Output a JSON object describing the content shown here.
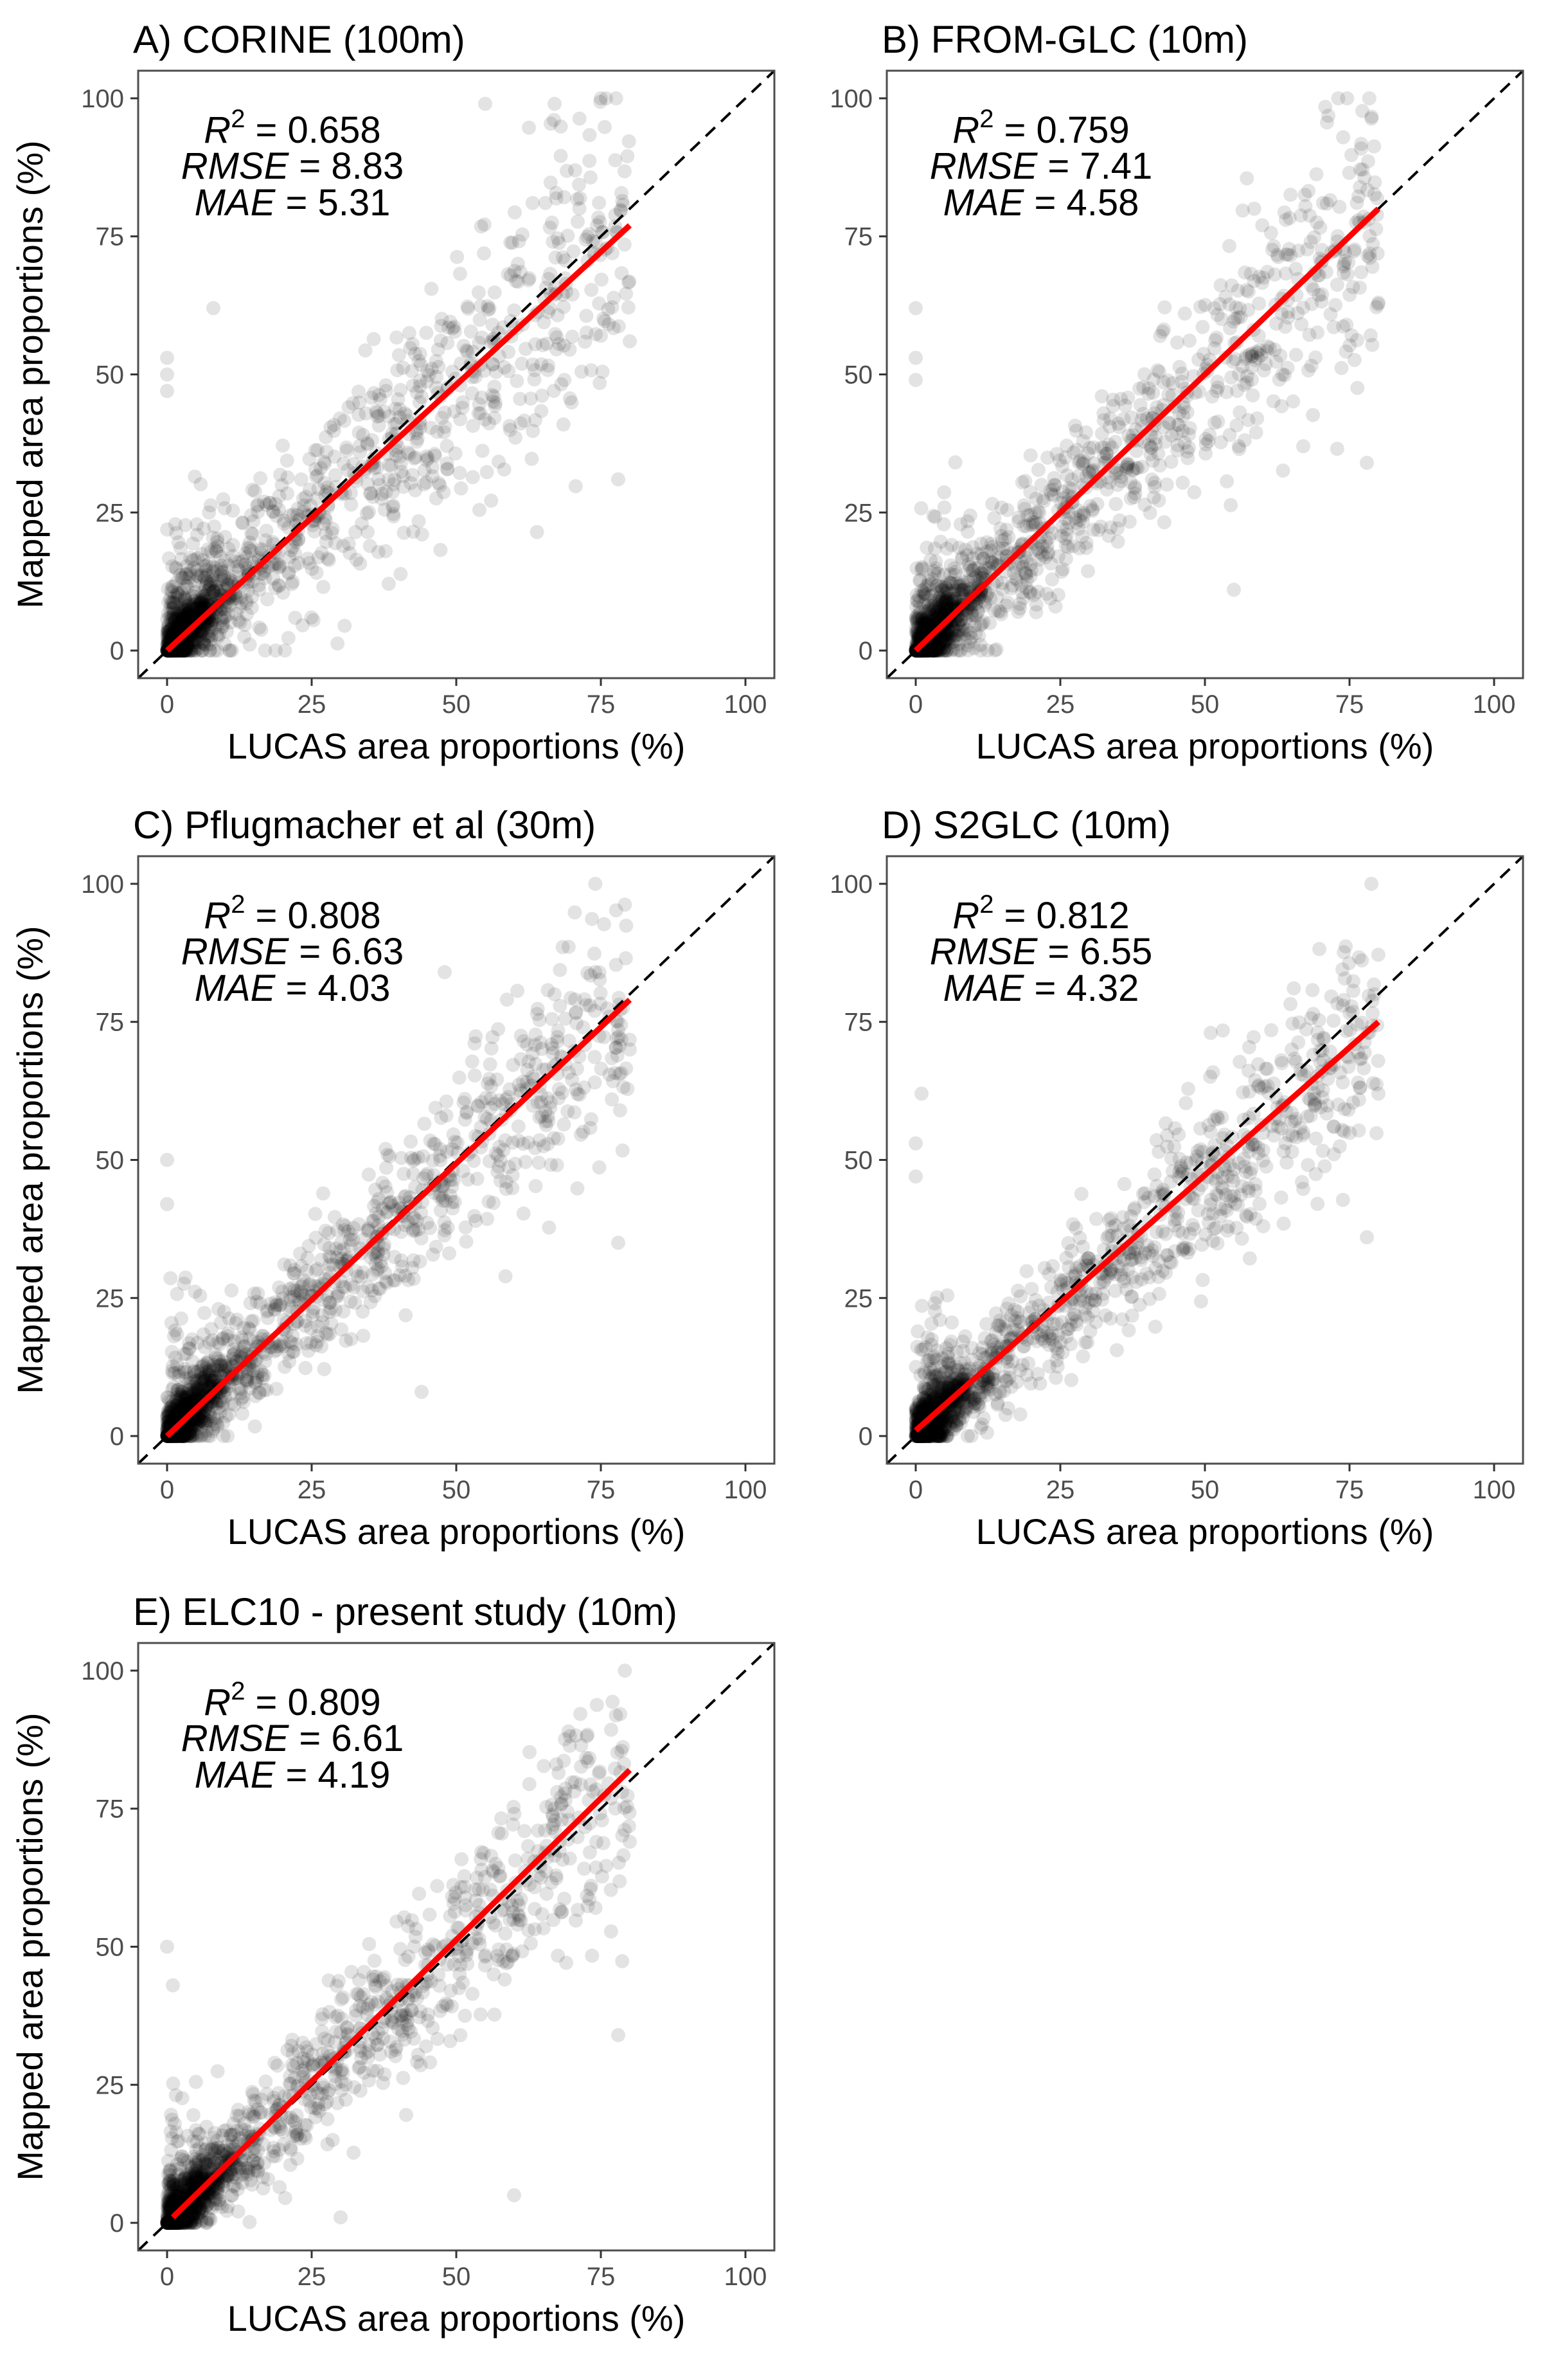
{
  "figure": {
    "x_axis_title": "LUCAS area proportions (%)",
    "y_axis_title": "Mapped area proportions (%)",
    "colors": {
      "points": "#000000",
      "fit_line": "#ff0000",
      "identity_line": "#000000",
      "frame": "#4d4d4d"
    }
  },
  "chart_data": [
    {
      "id": "A",
      "type": "scatter",
      "title": "A) CORINE (100m)",
      "xlabel": "LUCAS area proportions (%)",
      "ylabel": "Mapped area proportions (%)",
      "xlim": [
        -5,
        105
      ],
      "ylim": [
        -5,
        105
      ],
      "x_ticks": [
        0,
        25,
        50,
        75,
        100
      ],
      "y_ticks": [
        0,
        25,
        50,
        75,
        100
      ],
      "stats": {
        "r2_label": "R",
        "r2": "0.658",
        "rmse_label": "RMSE",
        "rmse": "8.83",
        "mae_label": "MAE",
        "mae": "5.31"
      },
      "fit_line": {
        "x": [
          0,
          80
        ],
        "y": [
          0,
          77
        ]
      },
      "identity_line": true,
      "point_cloud": {
        "slope": 0.96,
        "spread": 9.0,
        "n_main": 900,
        "n_low": 650,
        "seed": 11
      },
      "notable_points": [
        [
          8,
          62
        ],
        [
          0,
          53
        ],
        [
          0,
          50
        ],
        [
          0,
          47
        ],
        [
          55,
          99
        ],
        [
          67,
          99
        ],
        [
          78,
          31
        ],
        [
          80,
          56
        ],
        [
          75,
          57
        ]
      ]
    },
    {
      "id": "B",
      "type": "scatter",
      "title": "B) FROM-GLC (10m)",
      "xlabel": "LUCAS area proportions (%)",
      "ylabel": "Mapped area proportions (%)",
      "xlim": [
        -5,
        105
      ],
      "ylim": [
        -5,
        105
      ],
      "x_ticks": [
        0,
        25,
        50,
        75,
        100
      ],
      "y_ticks": [
        0,
        25,
        50,
        75,
        100
      ],
      "stats": {
        "r2_label": "R",
        "r2": "0.759",
        "rmse_label": "RMSE",
        "rmse": "7.41",
        "mae_label": "MAE",
        "mae": "4.58"
      },
      "fit_line": {
        "x": [
          0,
          80
        ],
        "y": [
          0,
          80
        ]
      },
      "identity_line": true,
      "point_cloud": {
        "slope": 1.0,
        "spread": 7.5,
        "n_main": 900,
        "n_low": 650,
        "seed": 22
      },
      "notable_points": [
        [
          0,
          62
        ],
        [
          0,
          53
        ],
        [
          0,
          49
        ],
        [
          64,
          78
        ],
        [
          78,
          34
        ],
        [
          80,
          63
        ],
        [
          55,
          11
        ],
        [
          67,
          37
        ]
      ]
    },
    {
      "id": "C",
      "type": "scatter",
      "title": "C) Pflugmacher et al (30m)",
      "xlabel": "LUCAS area proportions (%)",
      "ylabel": "Mapped area proportions (%)",
      "xlim": [
        -5,
        105
      ],
      "ylim": [
        -5,
        105
      ],
      "x_ticks": [
        0,
        25,
        50,
        75,
        100
      ],
      "y_ticks": [
        0,
        25,
        50,
        75,
        100
      ],
      "stats": {
        "r2_label": "R",
        "r2": "0.808",
        "rmse_label": "RMSE",
        "rmse": "6.63",
        "mae_label": "MAE",
        "mae": "4.03"
      },
      "fit_line": {
        "x": [
          0,
          80
        ],
        "y": [
          0,
          79
        ]
      },
      "identity_line": true,
      "point_cloud": {
        "slope": 0.99,
        "spread": 6.5,
        "n_main": 900,
        "n_low": 650,
        "seed": 33
      },
      "notable_points": [
        [
          0,
          50
        ],
        [
          0,
          42
        ],
        [
          48,
          84
        ],
        [
          67,
          80
        ],
        [
          78,
          35
        ],
        [
          80,
          70
        ],
        [
          44,
          8
        ]
      ]
    },
    {
      "id": "D",
      "type": "scatter",
      "title": "D) S2GLC (10m)",
      "xlabel": "LUCAS area proportions (%)",
      "ylabel": "Mapped area proportions (%)",
      "xlim": [
        -5,
        105
      ],
      "ylim": [
        -5,
        105
      ],
      "x_ticks": [
        0,
        25,
        50,
        75,
        100
      ],
      "y_ticks": [
        0,
        25,
        50,
        75,
        100
      ],
      "stats": {
        "r2_label": "R",
        "r2": "0.812",
        "rmse_label": "RMSE",
        "rmse": "6.55",
        "mae_label": "MAE",
        "mae": "4.32"
      },
      "fit_line": {
        "x": [
          0,
          80
        ],
        "y": [
          1,
          75
        ]
      },
      "identity_line": true,
      "point_cloud": {
        "slope": 0.92,
        "spread": 6.2,
        "n_main": 900,
        "n_low": 650,
        "seed": 44
      },
      "notable_points": [
        [
          1,
          62
        ],
        [
          0,
          53
        ],
        [
          0,
          47
        ],
        [
          51,
          73
        ],
        [
          78,
          36
        ],
        [
          80,
          62
        ],
        [
          65,
          70
        ]
      ]
    },
    {
      "id": "E",
      "type": "scatter",
      "title": "E) ELC10 - present study (10m)",
      "xlabel": "LUCAS area proportions (%)",
      "ylabel": "Mapped area proportions (%)",
      "xlim": [
        -5,
        105
      ],
      "ylim": [
        -5,
        105
      ],
      "x_ticks": [
        0,
        25,
        50,
        75,
        100
      ],
      "y_ticks": [
        0,
        25,
        50,
        75,
        100
      ],
      "stats": {
        "r2_label": "R",
        "r2": "0.809",
        "rmse_label": "RMSE",
        "rmse": "6.61",
        "mae_label": "MAE",
        "mae": "4.19"
      },
      "fit_line": {
        "x": [
          1,
          80
        ],
        "y": [
          1,
          82
        ]
      },
      "identity_line": true,
      "point_cloud": {
        "slope": 1.0,
        "spread": 6.4,
        "n_main": 900,
        "n_low": 650,
        "seed": 55
      },
      "notable_points": [
        [
          0,
          50
        ],
        [
          1,
          43
        ],
        [
          67,
          75
        ],
        [
          78,
          34
        ],
        [
          80,
          69
        ],
        [
          60,
          5
        ],
        [
          30,
          1
        ]
      ]
    }
  ]
}
